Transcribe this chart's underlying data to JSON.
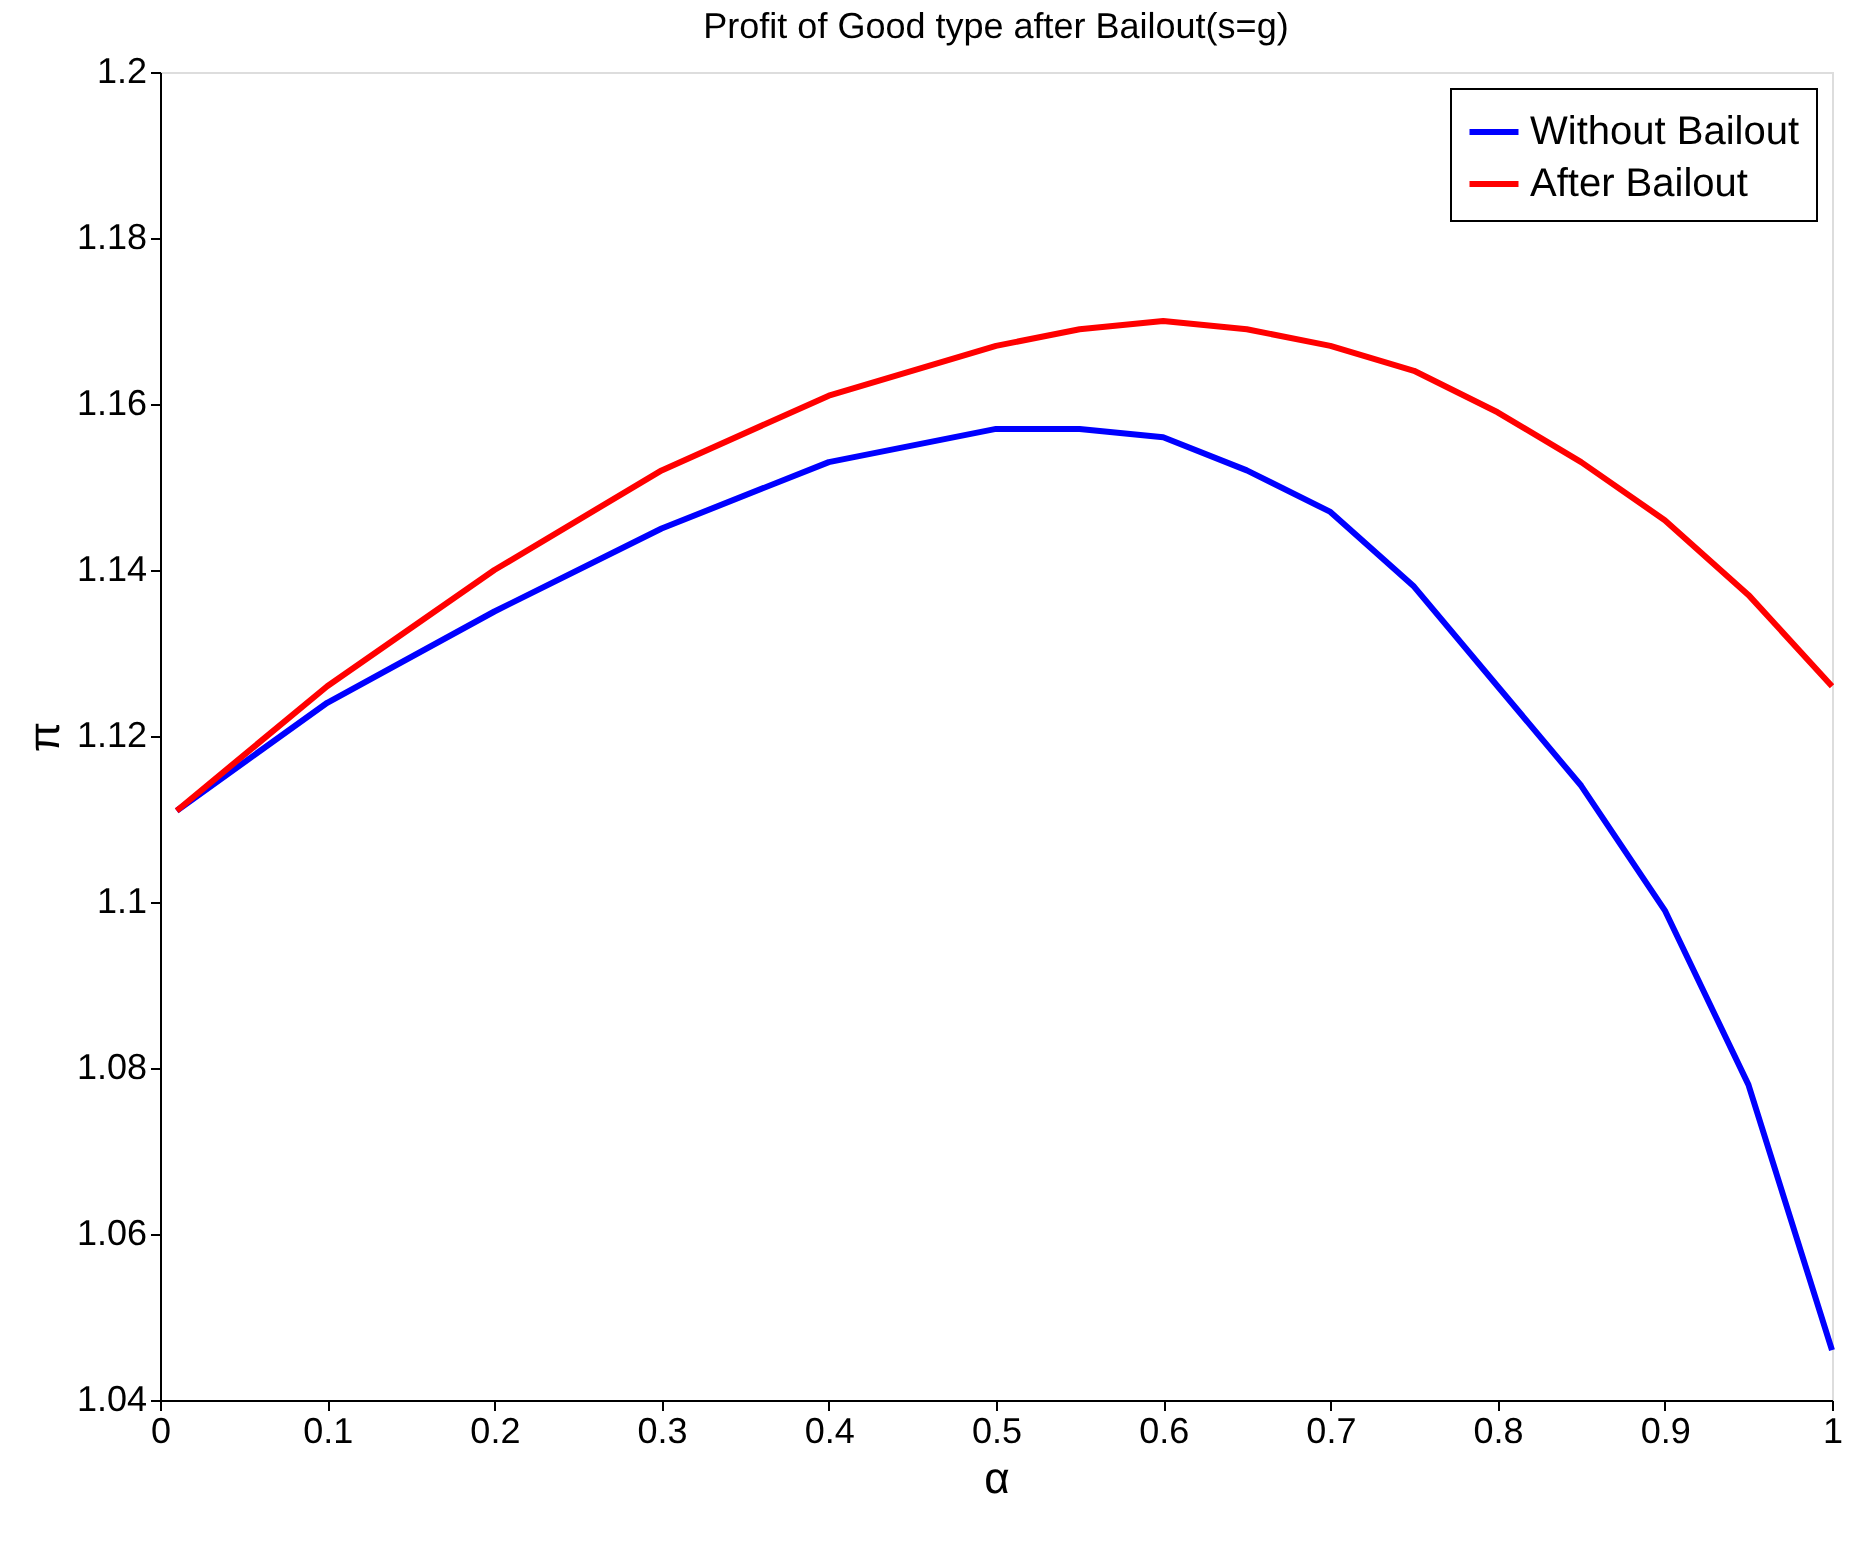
{
  "chart_data": {
    "type": "line",
    "title": "Profit of Good type after Bailout(s=g)",
    "xlabel": "α",
    "ylabel": "π",
    "xlim": [
      0,
      1
    ],
    "xticks": [
      0,
      0.1,
      0.2,
      0.3,
      0.4,
      0.5,
      0.6,
      0.7,
      0.8,
      0.9,
      1
    ],
    "ylim": [
      1.04,
      1.2
    ],
    "yticks": [
      1.04,
      1.06,
      1.08,
      1.1,
      1.12,
      1.14,
      1.16,
      1.18,
      1.2
    ],
    "grid": false,
    "legend": "top right",
    "line_style": "solid",
    "x": [
      0.01,
      0.1,
      0.2,
      0.3,
      0.4,
      0.5,
      0.55,
      0.6,
      0.65,
      0.7,
      0.75,
      0.8,
      0.85,
      0.9,
      0.95,
      1.0
    ],
    "series": [
      {
        "name": "Without Bailout",
        "color": "#0000ff",
        "values": [
          1.111,
          1.124,
          1.135,
          1.145,
          1.153,
          1.157,
          1.157,
          1.156,
          1.152,
          1.147,
          1.138,
          1.126,
          1.114,
          1.099,
          1.078,
          1.046
        ]
      },
      {
        "name": "After Bailout",
        "color": "#ff0000",
        "values": [
          1.111,
          1.126,
          1.14,
          1.152,
          1.161,
          1.167,
          1.169,
          1.17,
          1.169,
          1.167,
          1.164,
          1.159,
          1.153,
          1.146,
          1.137,
          1.126
        ]
      }
    ]
  }
}
